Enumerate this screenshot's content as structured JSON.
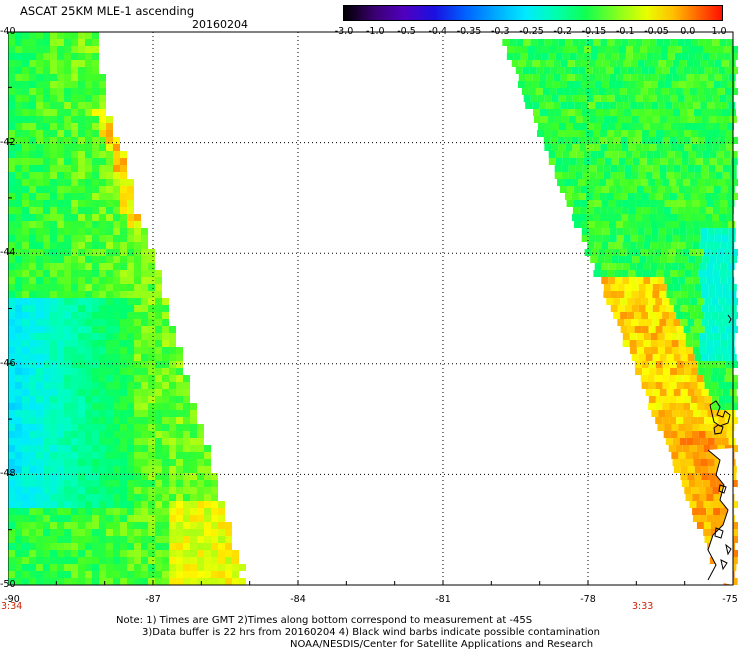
{
  "header": {
    "title": "ASCAT 25KM MLE-1 ascending",
    "date": "20160204"
  },
  "colorbar": {
    "tick_labels": [
      "-3.0",
      "-1.0",
      "-0.5",
      "-0.4",
      "-0.35",
      "-0.3",
      "-0.25",
      "-0.2",
      "-0.15",
      "-0.1",
      "-0.05",
      "0.0",
      "1.0"
    ],
    "colors": [
      "#2a0050",
      "#4a00a0",
      "#1a10e0",
      "#0050ff",
      "#0098ff",
      "#00d8ff",
      "#00ffd8",
      "#00ff90",
      "#30ff30",
      "#a0ff20",
      "#ffff00",
      "#ffb000",
      "#ff6000",
      "#ff1000"
    ]
  },
  "map": {
    "lat_labels": [
      "-40",
      "-42",
      "-44",
      "-46",
      "-48",
      "-50"
    ],
    "lon_labels": [
      "-90",
      "-87",
      "-84",
      "-81",
      "-78",
      "-75"
    ],
    "lon_range": [
      -90,
      -75
    ],
    "lat_range": [
      -50,
      -40
    ],
    "time_left": "3:34",
    "time_right": "3:33",
    "coastline_color": "#000000"
  },
  "notes": {
    "line1": "Note: 1) Times are GMT 2)Times along bottom correspond to measurement at -45S",
    "line2": "3)Data buffer is 22 hrs from 20160204 4) Black wind barbs indicate possible contamination",
    "line3": "NOAA/NESDIS/Center for Satellite Applications and Research"
  }
}
